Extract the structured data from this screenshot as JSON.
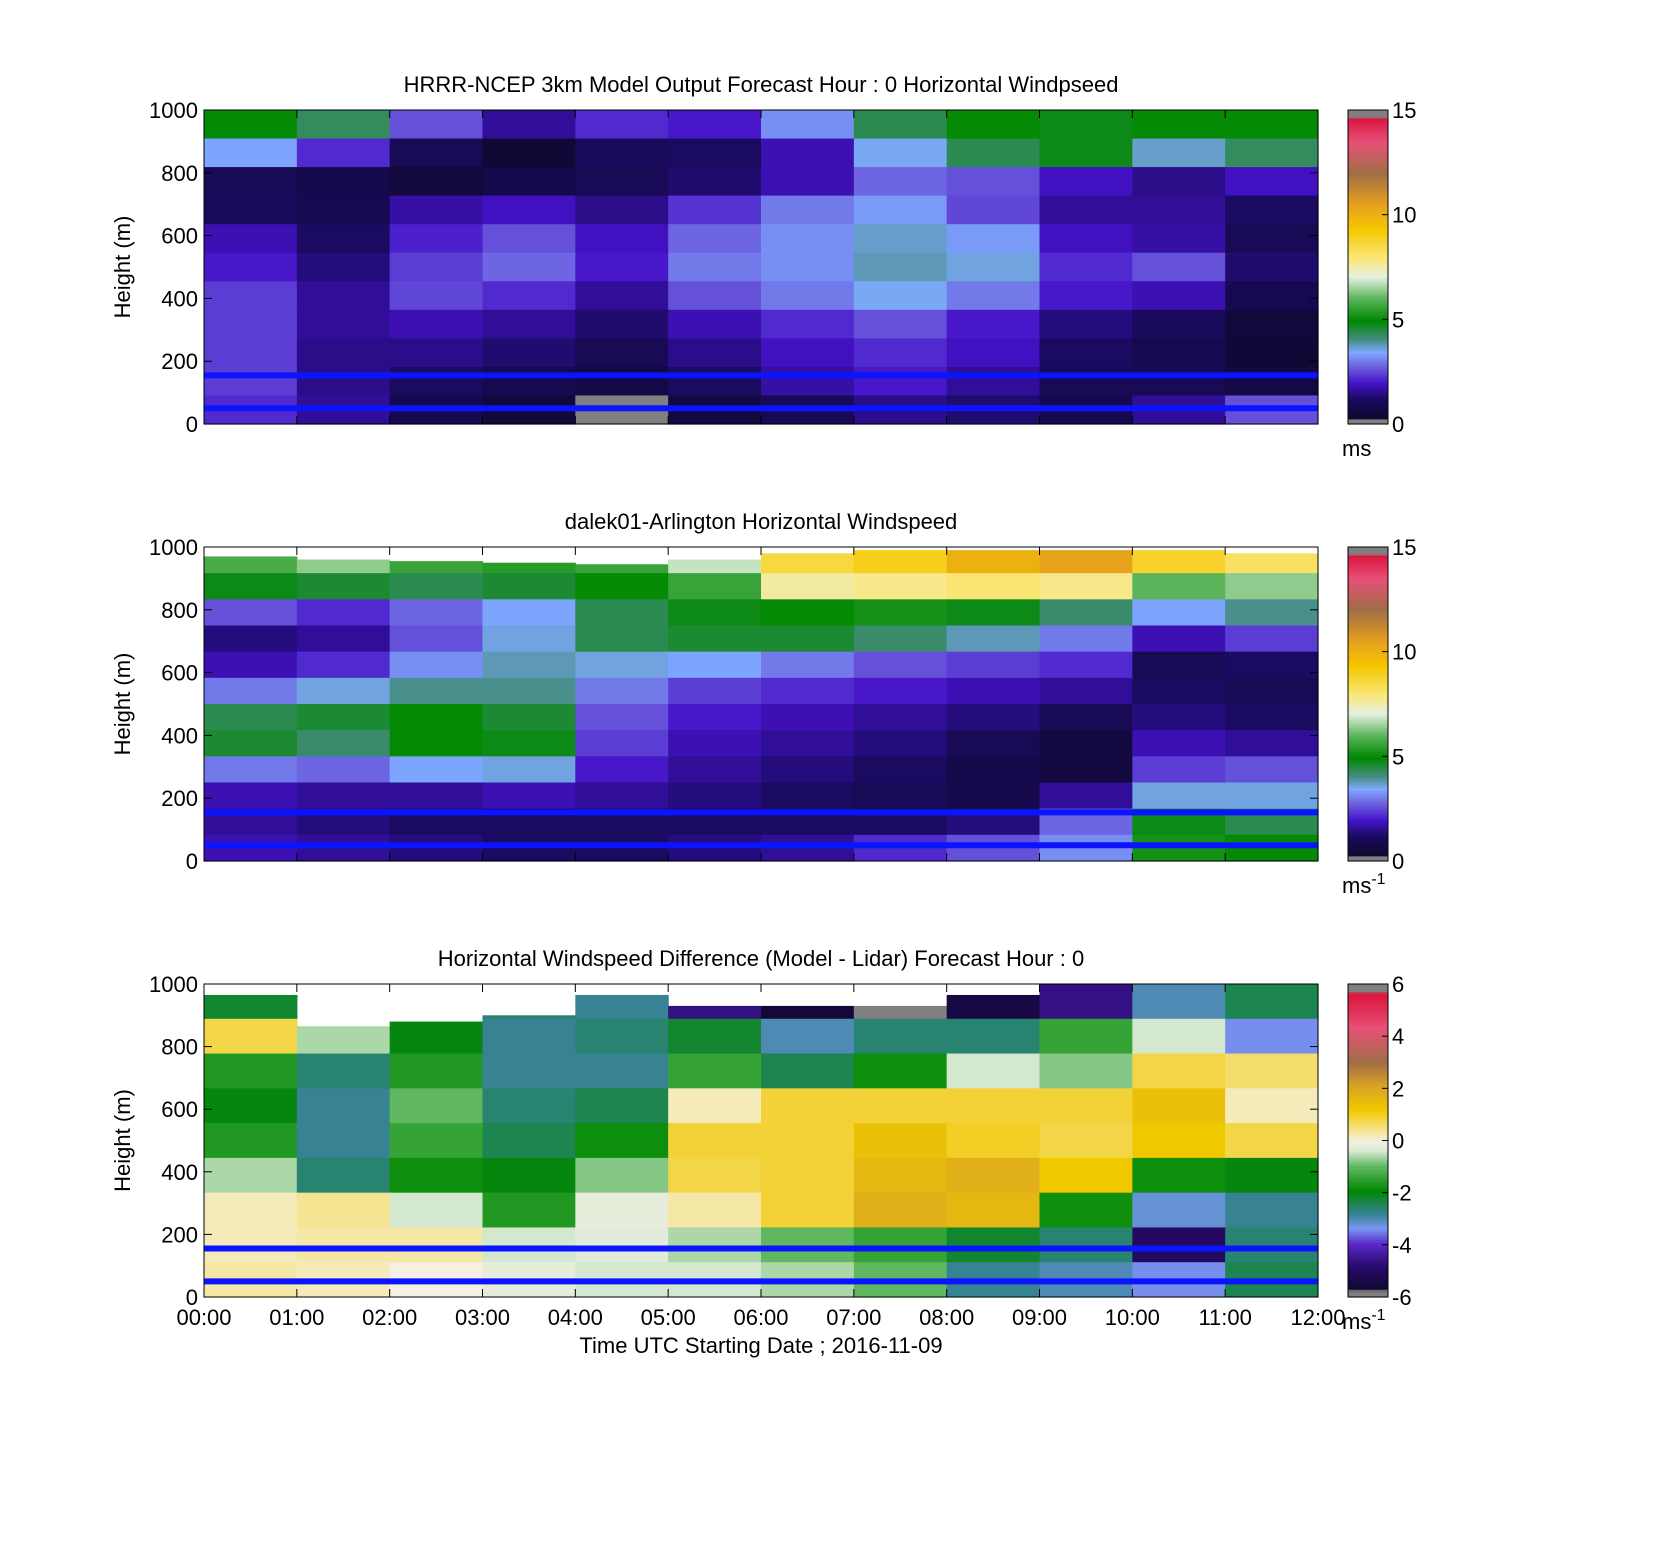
{
  "figure": {
    "panels": [
      {
        "id": "model",
        "title": "HRRR-NCEP 3km Model Output   Forecast Hour : 0 Horizontal Windpseed",
        "ylabel": "Height (m)",
        "ylim": [
          0,
          1000
        ],
        "yticks": [
          "0",
          "200",
          "400",
          "600",
          "800",
          "1000"
        ],
        "show_xticklabels": false,
        "colorbar": {
          "ticks": [
            "0",
            "5",
            "10",
            "15"
          ],
          "range": [
            0,
            15
          ],
          "unit": "ms",
          "unit_sup": ""
        },
        "reference_lines_m": [
          50,
          155
        ],
        "blank_above_m": [
          1000,
          1000,
          1000,
          1000,
          1000,
          1000,
          1000,
          1000,
          1000,
          1000,
          1000,
          1000
        ],
        "grid_rows": [
          [
            5.0,
            4.3,
            2.6,
            1.6,
            2.2,
            2.0,
            3.2,
            4.4,
            5.0,
            4.8,
            5.0,
            5.0
          ],
          [
            3.4,
            2.2,
            1.0,
            0.4,
            1.1,
            1.2,
            1.8,
            3.5,
            4.4,
            4.8,
            3.7,
            4.3
          ],
          [
            1.0,
            0.8,
            0.5,
            0.8,
            1.0,
            1.3,
            1.8,
            2.8,
            2.6,
            1.9,
            1.5,
            1.9
          ],
          [
            1.1,
            0.9,
            1.7,
            1.9,
            1.5,
            2.3,
            3.0,
            3.3,
            2.5,
            1.6,
            1.6,
            1.2
          ],
          [
            1.8,
            1.2,
            2.1,
            2.6,
            1.9,
            2.8,
            3.2,
            3.7,
            3.3,
            1.9,
            1.7,
            1.0
          ],
          [
            2.0,
            1.4,
            2.4,
            2.8,
            2.0,
            3.0,
            3.2,
            3.8,
            3.6,
            2.2,
            2.6,
            1.3
          ],
          [
            2.4,
            1.6,
            2.5,
            2.2,
            1.6,
            2.6,
            3.0,
            3.5,
            3.0,
            2.0,
            1.8,
            0.9
          ],
          [
            2.4,
            1.6,
            1.8,
            1.6,
            1.3,
            1.8,
            2.2,
            2.6,
            2.0,
            1.4,
            1.1,
            0.5
          ],
          [
            2.4,
            1.5,
            1.5,
            1.3,
            1.0,
            1.5,
            1.9,
            2.2,
            1.9,
            1.2,
            0.9,
            0.4
          ],
          [
            2.4,
            1.5,
            1.2,
            0.9,
            0.7,
            1.2,
            1.7,
            2.0,
            1.6,
            1.0,
            1.0,
            0.7
          ],
          [
            2.2,
            1.6,
            0.9,
            0.5,
            0.0,
            0.6,
            1.0,
            1.5,
            1.3,
            0.9,
            1.6,
            2.6
          ]
        ]
      },
      {
        "id": "lidar",
        "title": "dalek01-Arlington  Horizontal Windspeed",
        "ylabel": "Height (m)",
        "ylim": [
          0,
          1000
        ],
        "yticks": [
          "0",
          "200",
          "400",
          "600",
          "800",
          "1000"
        ],
        "show_xticklabels": false,
        "colorbar": {
          "ticks": [
            "0",
            "5",
            "10",
            "15"
          ],
          "range": [
            0,
            15
          ],
          "unit": "ms",
          "unit_sup": "-1"
        },
        "reference_lines_m": [
          50,
          155
        ],
        "blank_above_m": [
          970,
          960,
          955,
          950,
          945,
          960,
          980,
          990,
          990,
          990,
          990,
          980
        ],
        "grid_rows": [
          [
            5.8,
            6.4,
            5.6,
            5.4,
            5.6,
            6.8,
            8.6,
            9.0,
            10.0,
            10.4,
            8.8,
            8.2
          ],
          [
            4.8,
            4.6,
            4.4,
            4.6,
            5.0,
            5.6,
            7.6,
            7.8,
            8.0,
            7.8,
            6.0,
            6.4
          ],
          [
            2.6,
            2.2,
            2.8,
            3.4,
            4.4,
            4.8,
            5.0,
            5.2,
            4.8,
            4.2,
            3.4,
            4.0
          ],
          [
            1.4,
            1.6,
            2.6,
            3.6,
            4.4,
            4.6,
            4.6,
            4.2,
            3.8,
            3.0,
            1.8,
            2.4
          ],
          [
            1.8,
            2.2,
            3.2,
            3.8,
            3.6,
            3.4,
            3.0,
            2.6,
            2.4,
            2.2,
            1.0,
            1.2
          ],
          [
            3.0,
            3.6,
            4.0,
            4.0,
            3.0,
            2.4,
            2.2,
            2.0,
            1.8,
            1.6,
            1.2,
            1.0
          ],
          [
            4.4,
            4.6,
            5.0,
            4.6,
            2.6,
            2.0,
            1.8,
            1.6,
            1.4,
            1.0,
            1.4,
            1.2
          ],
          [
            4.6,
            4.2,
            5.0,
            4.8,
            2.4,
            1.8,
            1.6,
            1.4,
            1.0,
            0.6,
            1.8,
            1.6
          ],
          [
            3.0,
            2.8,
            3.4,
            3.6,
            2.0,
            1.6,
            1.4,
            1.2,
            0.8,
            0.6,
            2.4,
            2.6
          ],
          [
            1.8,
            1.6,
            1.6,
            1.8,
            1.6,
            1.4,
            1.2,
            1.0,
            0.8,
            1.6,
            3.6,
            3.6
          ],
          [
            1.6,
            1.4,
            1.2,
            1.2,
            1.2,
            1.2,
            1.2,
            1.2,
            1.4,
            2.8,
            4.8,
            4.4
          ],
          [
            1.8,
            1.6,
            1.4,
            1.2,
            1.2,
            1.4,
            1.6,
            2.2,
            2.6,
            3.2,
            5.2,
            5.0
          ]
        ]
      },
      {
        "id": "difference",
        "title": "Horizontal Windspeed Difference (Model - Lidar) Forecast Hour : 0",
        "ylabel": "Height (m)",
        "ylim": [
          0,
          1000
        ],
        "yticks": [
          "0",
          "200",
          "400",
          "600",
          "800",
          "1000"
        ],
        "show_xticklabels": true,
        "xlabel": "Time UTC  Starting Date ; 2016-11-09",
        "colorbar": {
          "ticks": [
            "-6",
            "-4",
            "-2",
            "0",
            "2",
            "4",
            "6"
          ],
          "range": [
            -6,
            6
          ],
          "unit": "ms",
          "unit_sup": "-1"
        },
        "reference_lines_m": [
          50,
          155
        ],
        "blank_above_m": [
          965,
          865,
          880,
          900,
          965,
          930,
          930,
          930,
          965,
          1000,
          1000,
          1000
        ],
        "grid_rows": [
          [
            -2.2,
            -1.6,
            -1.8,
            -2.6,
            -2.8,
            -4.6,
            -5.6,
            -5.8,
            -5.4,
            -4.6,
            -3.0,
            -2.4
          ],
          [
            0.8,
            -0.6,
            -2.0,
            -2.8,
            -2.6,
            -2.2,
            -3.0,
            -2.6,
            -2.6,
            -1.4,
            -0.4,
            -3.4
          ],
          [
            -1.6,
            -2.6,
            -1.6,
            -2.8,
            -2.8,
            -1.4,
            -2.4,
            -1.8,
            -0.4,
            -0.8,
            0.8,
            0.6
          ],
          [
            -2.0,
            -2.8,
            -1.0,
            -2.6,
            -2.4,
            0.2,
            0.9,
            0.9,
            0.9,
            0.9,
            1.4,
            0.2
          ],
          [
            -1.6,
            -2.8,
            -1.4,
            -2.4,
            -1.8,
            0.9,
            0.9,
            1.4,
            1.0,
            0.8,
            1.2,
            0.8
          ],
          [
            -0.6,
            -2.6,
            -1.8,
            -2.0,
            -0.8,
            0.8,
            0.9,
            1.6,
            1.8,
            1.2,
            -1.8,
            -2.0
          ],
          [
            0.2,
            0.4,
            -0.4,
            -1.6,
            -0.2,
            0.3,
            0.9,
            1.8,
            1.6,
            -1.8,
            -3.2,
            -2.8
          ],
          [
            0.2,
            0.3,
            0.3,
            -0.4,
            -0.3,
            -0.6,
            -1.0,
            -1.4,
            -2.2,
            -2.6,
            -5.0,
            -2.6
          ],
          [
            0.3,
            0.2,
            0.0,
            -0.2,
            -0.4,
            -0.4,
            -0.6,
            -1.0,
            -2.8,
            -3.0,
            -3.4,
            -2.4
          ]
        ]
      }
    ],
    "xticks": [
      "00:00",
      "01:00",
      "02:00",
      "03:00",
      "04:00",
      "05:00",
      "06:00",
      "07:00",
      "08:00",
      "09:00",
      "10:00",
      "11:00",
      "12:00"
    ]
  },
  "chart_data": [
    {
      "type": "heatmap",
      "title": "HRRR-NCEP 3km Model Output   Forecast Hour : 0 Horizontal Windpseed",
      "xlabel": "",
      "ylabel": "Height (m)",
      "x": [
        "00:00",
        "01:00",
        "02:00",
        "03:00",
        "04:00",
        "05:00",
        "06:00",
        "07:00",
        "08:00",
        "09:00",
        "10:00",
        "11:00",
        "12:00"
      ],
      "ylim": [
        0,
        1000
      ],
      "colorbar_range": [
        0,
        15
      ],
      "colorbar_unit": "ms",
      "horizontal_reference_lines_m": [
        50,
        155
      ]
    },
    {
      "type": "heatmap",
      "title": "dalek01-Arlington  Horizontal Windspeed",
      "xlabel": "",
      "ylabel": "Height (m)",
      "x": [
        "00:00",
        "01:00",
        "02:00",
        "03:00",
        "04:00",
        "05:00",
        "06:00",
        "07:00",
        "08:00",
        "09:00",
        "10:00",
        "11:00",
        "12:00"
      ],
      "ylim": [
        0,
        1000
      ],
      "colorbar_range": [
        0,
        15
      ],
      "colorbar_unit": "ms-1",
      "horizontal_reference_lines_m": [
        50,
        155
      ]
    },
    {
      "type": "heatmap",
      "title": "Horizontal Windspeed Difference (Model - Lidar) Forecast Hour : 0",
      "xlabel": "Time UTC  Starting Date ; 2016-11-09",
      "ylabel": "Height (m)",
      "x": [
        "00:00",
        "01:00",
        "02:00",
        "03:00",
        "04:00",
        "05:00",
        "06:00",
        "07:00",
        "08:00",
        "09:00",
        "10:00",
        "11:00",
        "12:00"
      ],
      "ylim": [
        0,
        1000
      ],
      "colorbar_range": [
        -6,
        6
      ],
      "colorbar_unit": "ms-1",
      "horizontal_reference_lines_m": [
        50,
        155
      ]
    }
  ]
}
